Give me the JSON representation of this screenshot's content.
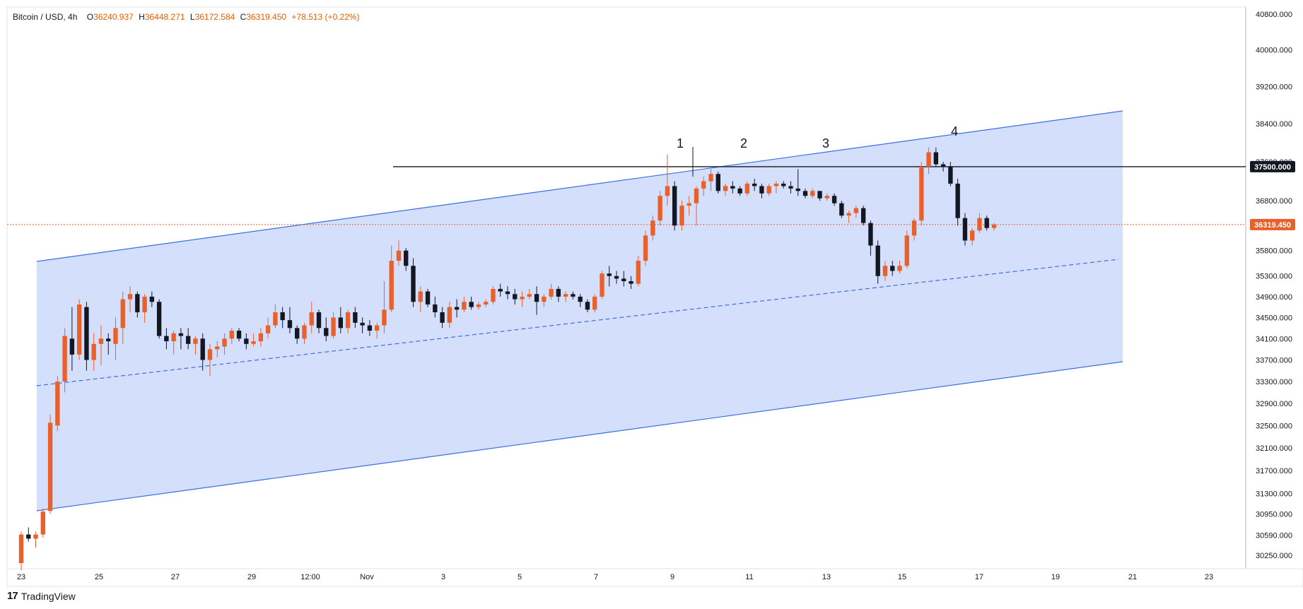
{
  "legend": {
    "symbol": "Bitcoin / USD, 4h",
    "open_label": "O",
    "open": "36240.937",
    "high_label": "H",
    "high": "36448.271",
    "low_label": "L",
    "low": "36172.584",
    "close_label": "C",
    "close": "36319.450",
    "change": "+78.513 (+0.22%)"
  },
  "brand": {
    "logo": "17",
    "name": "TradingView"
  },
  "colors": {
    "up": "#e8612c",
    "down": "#131722",
    "channel_fill": "#cfdcfb",
    "channel_line": "#3b6fe0",
    "price_line": "#e8612c",
    "level_line": "#131722"
  },
  "chart_data": {
    "type": "candlestick",
    "symbol": "Bitcoin / USD",
    "interval": "4h",
    "y_scale": "log",
    "yticks": [
      "40800.000",
      "40000.000",
      "39200.000",
      "38400.000",
      "37600.000",
      "36800.000",
      "35800.000",
      "35300.000",
      "34900.000",
      "34500.000",
      "34100.000",
      "33700.000",
      "33300.000",
      "32900.000",
      "32500.000",
      "32100.000",
      "31700.000",
      "31300.000",
      "30950.000",
      "30590.000",
      "30250.000"
    ],
    "xticks": [
      "23",
      "25",
      "27",
      "29",
      "12:00",
      "Nov",
      "3",
      "5",
      "7",
      "9",
      "11",
      "13",
      "15",
      "17",
      "19",
      "21",
      "23"
    ],
    "current_price": {
      "value": 36319.45,
      "label": "36319.450"
    },
    "horizontal_level": {
      "value": 37500,
      "label": "37500.000"
    },
    "wave_labels": [
      {
        "text": "1",
        "price": 37900
      },
      {
        "text": "2",
        "price": 37900
      },
      {
        "text": "3",
        "price": 37900
      },
      {
        "text": "4",
        "price": 38000
      }
    ],
    "channel_note": "ascending parallel channel with dashed midline",
    "series": [
      {
        "name": "Bitcoin / USD, 4h",
        "ohlc": [
          [
            30120,
            30650,
            30000,
            30600
          ],
          [
            30600,
            30720,
            30480,
            30530
          ],
          [
            30530,
            30650,
            30380,
            30600
          ],
          [
            30600,
            31050,
            30550,
            30990
          ],
          [
            31000,
            32700,
            30950,
            32550
          ],
          [
            32500,
            33400,
            32400,
            33300
          ],
          [
            33300,
            34300,
            33100,
            34150
          ],
          [
            34100,
            34700,
            33500,
            33800
          ],
          [
            33800,
            34850,
            33700,
            34750
          ],
          [
            34700,
            34800,
            33500,
            33700
          ],
          [
            33700,
            34200,
            33500,
            34000
          ],
          [
            34000,
            34350,
            33600,
            34100
          ],
          [
            34100,
            34200,
            33800,
            34050
          ],
          [
            34000,
            34500,
            33700,
            34300
          ],
          [
            34300,
            35000,
            34000,
            34850
          ],
          [
            34850,
            35100,
            34600,
            34950
          ],
          [
            34950,
            35000,
            34500,
            34600
          ],
          [
            34600,
            34950,
            34400,
            34900
          ],
          [
            34900,
            35000,
            34700,
            34800
          ],
          [
            34800,
            34850,
            34100,
            34150
          ],
          [
            34150,
            34300,
            33900,
            34050
          ],
          [
            34050,
            34250,
            33800,
            34200
          ],
          [
            34200,
            34300,
            33900,
            34150
          ],
          [
            34150,
            34300,
            33900,
            34000
          ],
          [
            34000,
            34150,
            33800,
            34100
          ],
          [
            34100,
            34200,
            33500,
            33700
          ],
          [
            33700,
            34000,
            33400,
            33900
          ],
          [
            33900,
            34050,
            33750,
            33950
          ],
          [
            33950,
            34200,
            33800,
            34100
          ],
          [
            34100,
            34300,
            34000,
            34250
          ],
          [
            34250,
            34300,
            34050,
            34100
          ],
          [
            34100,
            34200,
            33900,
            34000
          ],
          [
            34000,
            34200,
            33950,
            34050
          ],
          [
            34050,
            34300,
            33950,
            34200
          ],
          [
            34200,
            34500,
            34100,
            34350
          ],
          [
            34350,
            34750,
            34300,
            34600
          ],
          [
            34600,
            34700,
            34300,
            34450
          ],
          [
            34450,
            34700,
            34200,
            34300
          ],
          [
            34300,
            34350,
            34000,
            34100
          ],
          [
            34100,
            34400,
            34000,
            34350
          ],
          [
            34350,
            34800,
            34200,
            34600
          ],
          [
            34600,
            34650,
            34200,
            34300
          ],
          [
            34300,
            34500,
            34050,
            34150
          ],
          [
            34150,
            34600,
            34100,
            34500
          ],
          [
            34500,
            34700,
            34200,
            34300
          ],
          [
            34300,
            34650,
            34200,
            34600
          ],
          [
            34600,
            34700,
            34300,
            34400
          ],
          [
            34400,
            34500,
            34200,
            34350
          ],
          [
            34350,
            34450,
            34150,
            34250
          ],
          [
            34250,
            34400,
            34100,
            34350
          ],
          [
            34350,
            35200,
            34200,
            34650
          ],
          [
            34650,
            35900,
            34600,
            35600
          ],
          [
            35600,
            36000,
            35500,
            35800
          ],
          [
            35800,
            35850,
            35400,
            35500
          ],
          [
            35500,
            35650,
            34700,
            34800
          ],
          [
            34800,
            35100,
            34600,
            35000
          ],
          [
            35000,
            35050,
            34700,
            34750
          ],
          [
            34750,
            34900,
            34500,
            34600
          ],
          [
            34600,
            34700,
            34300,
            34400
          ],
          [
            34400,
            34800,
            34300,
            34700
          ],
          [
            34700,
            34850,
            34500,
            34650
          ],
          [
            34650,
            34900,
            34600,
            34800
          ],
          [
            34800,
            34900,
            34650,
            34700
          ],
          [
            34700,
            34800,
            34650,
            34750
          ],
          [
            34750,
            34850,
            34700,
            34800
          ],
          [
            34800,
            35100,
            34750,
            35050
          ],
          [
            35050,
            35150,
            34900,
            35000
          ],
          [
            35000,
            35100,
            34850,
            34950
          ],
          [
            34950,
            35050,
            34750,
            34850
          ],
          [
            34850,
            35000,
            34700,
            34900
          ],
          [
            34900,
            35050,
            34850,
            34950
          ],
          [
            34950,
            35100,
            34550,
            34800
          ],
          [
            34800,
            34950,
            34700,
            34900
          ],
          [
            34900,
            35150,
            34850,
            35050
          ],
          [
            35050,
            35100,
            34800,
            34900
          ],
          [
            34900,
            35000,
            34800,
            34950
          ],
          [
            34950,
            35000,
            34850,
            34900
          ],
          [
            34900,
            34950,
            34700,
            34800
          ],
          [
            34800,
            34850,
            34600,
            34650
          ],
          [
            34650,
            34950,
            34600,
            34900
          ],
          [
            34900,
            35400,
            34850,
            35350
          ],
          [
            35350,
            35500,
            35100,
            35300
          ],
          [
            35300,
            35400,
            35150,
            35250
          ],
          [
            35250,
            35400,
            35100,
            35200
          ],
          [
            35200,
            35300,
            35050,
            35150
          ],
          [
            35150,
            35700,
            35100,
            35600
          ],
          [
            35600,
            36200,
            35500,
            36100
          ],
          [
            36100,
            36500,
            36000,
            36400
          ],
          [
            36400,
            37000,
            36300,
            36900
          ],
          [
            36900,
            37750,
            36700,
            37100
          ],
          [
            37100,
            37200,
            36200,
            36300
          ],
          [
            36300,
            36800,
            36200,
            36700
          ],
          [
            36700,
            36900,
            36500,
            36750
          ],
          [
            36750,
            37100,
            36300,
            37050
          ],
          [
            37050,
            37300,
            36900,
            37200
          ],
          [
            37200,
            37450,
            37000,
            37350
          ],
          [
            37350,
            37400,
            36950,
            37000
          ],
          [
            37000,
            37150,
            36900,
            37100
          ],
          [
            37100,
            37200,
            36950,
            37050
          ],
          [
            37050,
            37100,
            36900,
            36950
          ],
          [
            36950,
            37200,
            36900,
            37150
          ],
          [
            37150,
            37250,
            37000,
            37100
          ],
          [
            37100,
            37150,
            36850,
            36950
          ],
          [
            36950,
            37150,
            36900,
            37100
          ],
          [
            37100,
            37200,
            36950,
            37150
          ],
          [
            37150,
            37200,
            37050,
            37100
          ],
          [
            37100,
            37200,
            36950,
            37050
          ],
          [
            37050,
            37450,
            36900,
            37000
          ],
          [
            37000,
            37050,
            36850,
            36900
          ],
          [
            36900,
            37050,
            36850,
            37000
          ],
          [
            37000,
            37000,
            36800,
            36850
          ],
          [
            36850,
            36950,
            36800,
            36900
          ],
          [
            36900,
            36950,
            36700,
            36750
          ],
          [
            36750,
            36800,
            36450,
            36500
          ],
          [
            36500,
            36600,
            36350,
            36550
          ],
          [
            36550,
            36700,
            36450,
            36650
          ],
          [
            36650,
            36700,
            36300,
            36350
          ],
          [
            36350,
            36400,
            35700,
            35900
          ],
          [
            35900,
            36000,
            35150,
            35300
          ],
          [
            35300,
            35600,
            35200,
            35500
          ],
          [
            35500,
            35600,
            35300,
            35400
          ],
          [
            35400,
            35600,
            35350,
            35500
          ],
          [
            35500,
            36200,
            35450,
            36100
          ],
          [
            36100,
            36450,
            36000,
            36400
          ],
          [
            36400,
            37600,
            36300,
            37500
          ],
          [
            37500,
            37900,
            37350,
            37800
          ],
          [
            37800,
            37900,
            37500,
            37550
          ],
          [
            37550,
            37600,
            37400,
            37500
          ],
          [
            37500,
            37600,
            37100,
            37150
          ],
          [
            37150,
            37250,
            36300,
            36450
          ],
          [
            36450,
            36550,
            35900,
            36000
          ],
          [
            36000,
            36250,
            35900,
            36200
          ],
          [
            36200,
            36550,
            36150,
            36450
          ],
          [
            36450,
            36500,
            36200,
            36250
          ],
          [
            36250,
            36350,
            36200,
            36320
          ]
        ]
      }
    ]
  }
}
